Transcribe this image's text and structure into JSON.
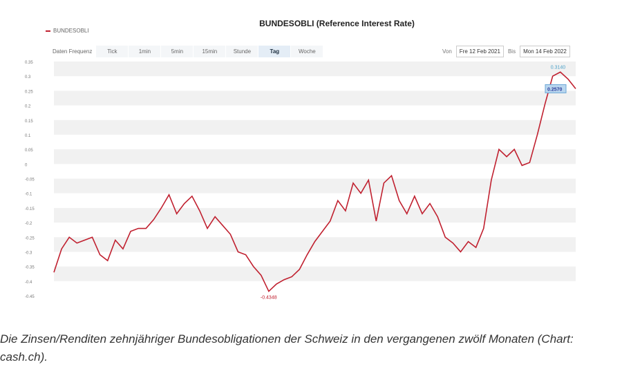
{
  "legend": {
    "label": "BUNDESOBLI"
  },
  "toolbar": {
    "frequency_label": "Daten Frequenz",
    "buttons": [
      "Tick",
      "1min",
      "5min",
      "15min",
      "Stunde",
      "Tag",
      "Woche"
    ],
    "active": "Tag",
    "from_label": "Von",
    "from_value": "Fre 12 Feb 2021",
    "to_label": "Bis",
    "to_value": "Mon 14 Feb 2022"
  },
  "caption": "Die Zinsen/Renditen zehnjähriger Bundesobligationen der Schweiz in den vergangenen zwölf Monaten (Chart: cash.ch).",
  "chart_data": {
    "type": "line",
    "title": "BUNDESOBLI (Reference Interest Rate)",
    "x_range": [
      "12 Feb 2021",
      "14 Feb 2022"
    ],
    "ylim": [
      -0.45,
      0.35
    ],
    "yticks": [
      "0.35",
      "0.3",
      "0.25",
      "0.2",
      "0.15",
      "0.1",
      "0.05",
      "0",
      "-0.05",
      "-0.1",
      "-0.15",
      "-0.2",
      "-0.25",
      "-0.3",
      "-0.35",
      "-0.4",
      "-0.45"
    ],
    "grid": "alternating bands",
    "legend": "top-left",
    "color": "#c0202f",
    "series": [
      {
        "name": "BUNDESOBLI",
        "values": [
          -0.37,
          -0.29,
          -0.25,
          -0.27,
          -0.26,
          -0.25,
          -0.31,
          -0.33,
          -0.26,
          -0.29,
          -0.23,
          -0.22,
          -0.22,
          -0.19,
          -0.15,
          -0.105,
          -0.17,
          -0.135,
          -0.11,
          -0.16,
          -0.22,
          -0.18,
          -0.21,
          -0.24,
          -0.3,
          -0.31,
          -0.35,
          -0.38,
          -0.4348,
          -0.41,
          -0.395,
          -0.385,
          -0.36,
          -0.31,
          -0.265,
          -0.23,
          -0.195,
          -0.125,
          -0.16,
          -0.065,
          -0.1,
          -0.055,
          -0.195,
          -0.065,
          -0.04,
          -0.125,
          -0.17,
          -0.11,
          -0.17,
          -0.135,
          -0.18,
          -0.25,
          -0.27,
          -0.3,
          -0.265,
          -0.285,
          -0.22,
          -0.055,
          0.05,
          0.025,
          0.05,
          -0.005,
          0.005,
          0.1,
          0.205,
          0.3,
          0.314,
          0.29,
          0.257
        ]
      }
    ],
    "annotations": {
      "max": "0.3140",
      "min": "-0.4348",
      "last": "0.2570"
    }
  }
}
